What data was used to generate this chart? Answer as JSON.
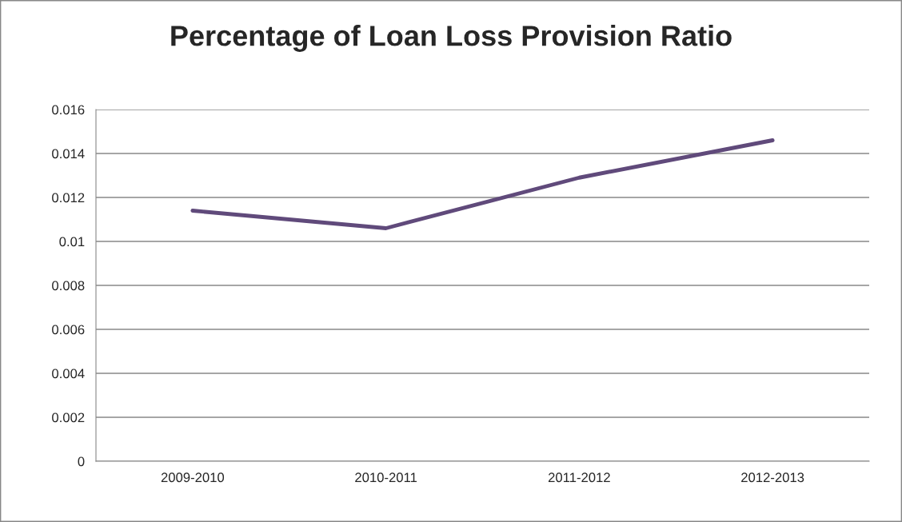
{
  "chart_data": {
    "type": "line",
    "title": "Percentage of Loan Loss Provision Ratio",
    "categories": [
      "2009-2010",
      "2010-2011",
      "2011-2012",
      "2012-2013"
    ],
    "series": [
      {
        "color": "#604a7b",
        "values": [
          0.0114,
          0.0106,
          0.0129,
          0.0146
        ]
      }
    ],
    "ylim": [
      0,
      0.016
    ],
    "yticks": [
      0,
      0.002,
      0.004,
      0.006,
      0.008,
      {
        "value": 0.01,
        "label": "0.01"
      },
      0.012,
      0.014,
      0.016
    ],
    "grid": "y",
    "legend": false
  }
}
